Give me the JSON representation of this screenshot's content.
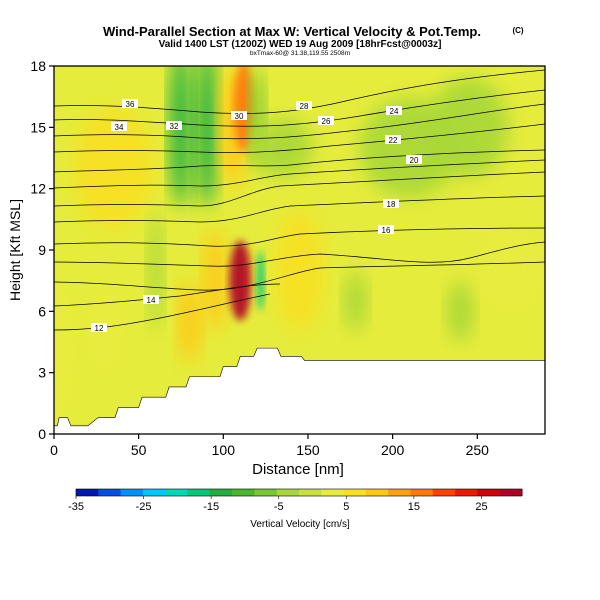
{
  "chart_data": {
    "type": "heatmap",
    "title": "Wind-Parallel Section at Max W: Vertical Velocity & Pot.Temp.",
    "copyright": "(C)",
    "subtitle": "Valid 1400 LST (1200Z) WED 19 Aug 2009 [18hrFcst@0003z]",
    "info_line": "bxTmax-60@ 31.38,119.55 2508m",
    "xlabel": "Distance [nm]",
    "ylabel": "Height [Kft MSL]",
    "xlim": [
      0,
      290
    ],
    "ylim": [
      0,
      18
    ],
    "x_ticks": [
      0,
      50,
      100,
      150,
      200,
      250
    ],
    "y_ticks": [
      0,
      3,
      6,
      9,
      12,
      15,
      18
    ],
    "colorbar": {
      "label": "Vertical Velocity [cm/s]",
      "range": [
        -35,
        31
      ],
      "tick_labels": [
        "-35",
        "-25",
        "-15",
        "-5",
        "5",
        "15",
        "25"
      ],
      "colors": [
        "#0018b0",
        "#0050e0",
        "#0090ff",
        "#00c8ff",
        "#00d8b8",
        "#00c878",
        "#20b040",
        "#48b828",
        "#78c830",
        "#a8d838",
        "#c8e040",
        "#e8ec40",
        "#f8e020",
        "#ffc818",
        "#ffa010",
        "#ff7808",
        "#ff4000",
        "#ec1800",
        "#d00008",
        "#b00028"
      ]
    },
    "terrain_kft": [
      [
        0,
        0.4
      ],
      [
        2,
        0.4
      ],
      [
        3,
        0.8
      ],
      [
        8,
        0.8
      ],
      [
        10,
        0.4
      ],
      [
        20,
        0.4
      ],
      [
        26,
        0.8
      ],
      [
        36,
        0.8
      ],
      [
        38,
        1.3
      ],
      [
        50,
        1.3
      ],
      [
        52,
        1.8
      ],
      [
        66,
        1.8
      ],
      [
        68,
        2.3
      ],
      [
        78,
        2.3
      ],
      [
        80,
        2.8
      ],
      [
        98,
        2.8
      ],
      [
        100,
        3.3
      ],
      [
        108,
        3.3
      ],
      [
        110,
        3.8
      ],
      [
        118,
        3.8
      ],
      [
        120,
        4.2
      ],
      [
        132,
        4.2
      ],
      [
        134,
        3.8
      ],
      [
        146,
        3.8
      ],
      [
        148,
        3.6
      ],
      [
        290,
        3.6
      ]
    ],
    "theta_contour_labels": [
      "36",
      "34",
      "32",
      "30",
      "28",
      "26",
      "24",
      "22",
      "20",
      "18",
      "16",
      "14",
      "12"
    ],
    "vertical_velocity_field": [
      {
        "x": 0,
        "z": 4.0,
        "w": 4
      },
      {
        "x": 35,
        "z": 13.0,
        "w": 6
      },
      {
        "x": 30,
        "z": 5.0,
        "w": 3
      },
      {
        "x": 60,
        "z": 8.0,
        "w": -4
      },
      {
        "x": 75,
        "z": 15.0,
        "w": -12
      },
      {
        "x": 80,
        "z": 5.5,
        "w": 10
      },
      {
        "x": 90,
        "z": 15.0,
        "w": -14
      },
      {
        "x": 95,
        "z": 7.5,
        "w": 8
      },
      {
        "x": 110,
        "z": 7.5,
        "w": 28
      },
      {
        "x": 106,
        "z": 15.0,
        "w": 8
      },
      {
        "x": 112,
        "z": 16.0,
        "w": 16
      },
      {
        "x": 120,
        "z": 15.5,
        "w": -6
      },
      {
        "x": 122,
        "z": 7.5,
        "w": -18
      },
      {
        "x": 135,
        "z": 14.0,
        "w": -3
      },
      {
        "x": 145,
        "z": 8.0,
        "w": 5
      },
      {
        "x": 178,
        "z": 6.5,
        "w": -4
      },
      {
        "x": 210,
        "z": 14.0,
        "w": -3
      },
      {
        "x": 240,
        "z": 6.0,
        "w": -5
      },
      {
        "x": 245,
        "z": 15.0,
        "w": -5
      },
      {
        "x": 270,
        "z": 8.0,
        "w": 3
      }
    ]
  }
}
